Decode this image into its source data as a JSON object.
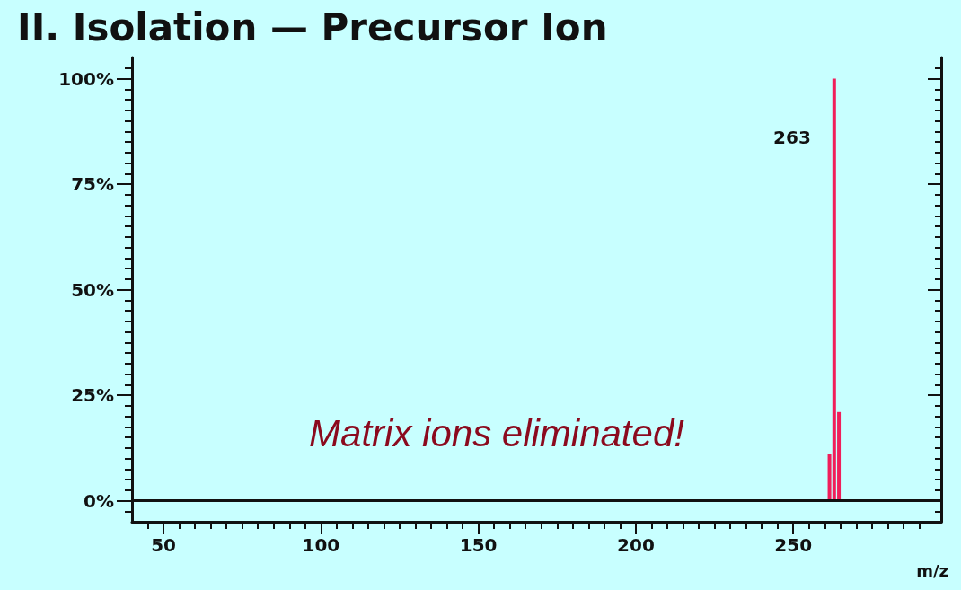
{
  "chart_data": {
    "type": "bar",
    "title": "II. Isolation — Precursor Ion",
    "xlabel": "m/z",
    "x": [
      261.5,
      263,
      264.5
    ],
    "values": [
      11,
      100,
      21
    ],
    "color": "#f01e5a",
    "xlim": [
      40,
      297
    ],
    "xticks": [
      {
        "value": 45,
        "label": null
      },
      50,
      {
        "value": 55,
        "label": null
      },
      {
        "value": 60,
        "label": null
      },
      {
        "value": 65,
        "label": null
      },
      {
        "value": 70,
        "label": null
      },
      {
        "value": 75,
        "label": null
      },
      {
        "value": 80,
        "label": null
      },
      {
        "value": 85,
        "label": null
      },
      {
        "value": 90,
        "label": null
      },
      {
        "value": 95,
        "label": null
      },
      100,
      {
        "value": 105,
        "label": null
      },
      {
        "value": 110,
        "label": null
      },
      {
        "value": 115,
        "label": null
      },
      {
        "value": 120,
        "label": null
      },
      {
        "value": 125,
        "label": null
      },
      {
        "value": 130,
        "label": null
      },
      {
        "value": 135,
        "label": null
      },
      {
        "value": 140,
        "label": null
      },
      {
        "value": 145,
        "label": null
      },
      150,
      {
        "value": 155,
        "label": null
      },
      {
        "value": 160,
        "label": null
      },
      {
        "value": 165,
        "label": null
      },
      {
        "value": 170,
        "label": null
      },
      {
        "value": 175,
        "label": null
      },
      {
        "value": 180,
        "label": null
      },
      {
        "value": 185,
        "label": null
      },
      {
        "value": 190,
        "label": null
      },
      {
        "value": 195,
        "label": null
      },
      200,
      {
        "value": 205,
        "label": null
      },
      {
        "value": 210,
        "label": null
      },
      {
        "value": 215,
        "label": null
      },
      {
        "value": 220,
        "label": null
      },
      {
        "value": 225,
        "label": null
      },
      {
        "value": 230,
        "label": null
      },
      {
        "value": 235,
        "label": null
      },
      {
        "value": 240,
        "label": null
      },
      {
        "value": 245,
        "label": null
      },
      250,
      {
        "value": 255,
        "label": null
      },
      {
        "value": 260,
        "label": null
      },
      {
        "value": 265,
        "label": null
      },
      {
        "value": 270,
        "label": null
      },
      {
        "value": 275,
        "label": null
      },
      {
        "value": 280,
        "label": null
      },
      {
        "value": 285,
        "label": null
      },
      {
        "value": 290,
        "label": null
      }
    ],
    "ylim": [
      -5,
      105
    ],
    "yticks": [
      {
        "value": -2.5,
        "label": null
      },
      {
        "value": 0,
        "label": "0%"
      },
      {
        "value": 2.5,
        "label": null
      },
      {
        "value": 5,
        "label": null
      },
      {
        "value": 7.5,
        "label": null
      },
      {
        "value": 10,
        "label": null
      },
      {
        "value": 12.5,
        "label": null
      },
      {
        "value": 15,
        "label": null
      },
      {
        "value": 17.5,
        "label": null
      },
      {
        "value": 20,
        "label": null
      },
      {
        "value": 22.5,
        "label": null
      },
      {
        "value": 25,
        "label": "25%"
      },
      {
        "value": 27.5,
        "label": null
      },
      {
        "value": 30,
        "label": null
      },
      {
        "value": 32.5,
        "label": null
      },
      {
        "value": 35,
        "label": null
      },
      {
        "value": 37.5,
        "label": null
      },
      {
        "value": 40,
        "label": null
      },
      {
        "value": 42.5,
        "label": null
      },
      {
        "value": 45,
        "label": null
      },
      {
        "value": 47.5,
        "label": null
      },
      {
        "value": 50,
        "label": "50%"
      },
      {
        "value": 52.5,
        "label": null
      },
      {
        "value": 55,
        "label": null
      },
      {
        "value": 57.5,
        "label": null
      },
      {
        "value": 60,
        "label": null
      },
      {
        "value": 62.5,
        "label": null
      },
      {
        "value": 65,
        "label": null
      },
      {
        "value": 67.5,
        "label": null
      },
      {
        "value": 70,
        "label": null
      },
      {
        "value": 72.5,
        "label": null
      },
      {
        "value": 75,
        "label": "75%"
      },
      {
        "value": 77.5,
        "label": null
      },
      {
        "value": 80,
        "label": null
      },
      {
        "value": 82.5,
        "label": null
      },
      {
        "value": 85,
        "label": null
      },
      {
        "value": 87.5,
        "label": null
      },
      {
        "value": 90,
        "label": null
      },
      {
        "value": 92.5,
        "label": null
      },
      {
        "value": 95,
        "label": null
      },
      {
        "value": 97.5,
        "label": null
      },
      {
        "value": 100,
        "label": "100%"
      },
      {
        "value": 102.5,
        "label": null
      }
    ],
    "ref_lines": [
      {
        "axis": "y",
        "value": 0,
        "color": "#111111"
      }
    ],
    "annotations": [
      {
        "text": "263",
        "x": 263,
        "y": 86
      },
      "Matrix ions eliminated!"
    ]
  }
}
